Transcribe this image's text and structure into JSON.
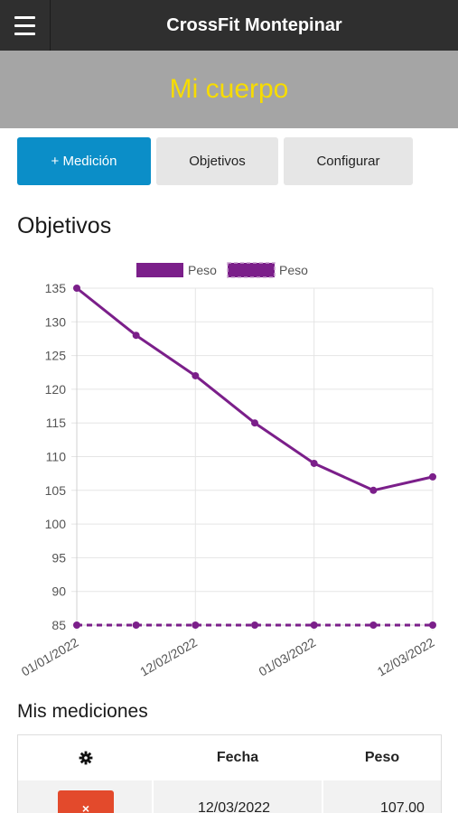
{
  "app": {
    "title": "CrossFit Montepinar"
  },
  "page": {
    "title": "Mi cuerpo"
  },
  "actions": {
    "medicion_label": "+ Medición",
    "objetivos_label": "Objetivos",
    "configurar_label": "Configurar"
  },
  "section": {
    "title": "Objetivos"
  },
  "chart_data": {
    "type": "line",
    "x": [
      "01/01/2022",
      "",
      "12/02/2022",
      "",
      "01/03/2022",
      "",
      "12/03/2022"
    ],
    "tick_labels": [
      "01/01/2022",
      "12/02/2022",
      "01/03/2022",
      "12/03/2022"
    ],
    "series": [
      {
        "name": "Peso",
        "style": "solid",
        "color": "#7b1f8a",
        "values": [
          135,
          128,
          122,
          115,
          109,
          105,
          107
        ]
      },
      {
        "name": "Peso",
        "style": "dashed",
        "color": "#7b1f8a",
        "values": [
          85,
          85,
          85,
          85,
          85,
          85,
          85
        ]
      }
    ],
    "y_ticks": [
      135,
      130,
      125,
      120,
      115,
      110,
      105,
      100,
      95,
      90,
      85
    ],
    "ylim": [
      85,
      135
    ],
    "grid": true,
    "legend": "top"
  },
  "mediciones": {
    "title": "Mis mediciones",
    "headers": {
      "icon": "gear-icon",
      "fecha": "Fecha",
      "peso": "Peso"
    },
    "rows": [
      {
        "fecha": "12/03/2022",
        "peso": "107.00",
        "delete_label": "×"
      }
    ]
  }
}
